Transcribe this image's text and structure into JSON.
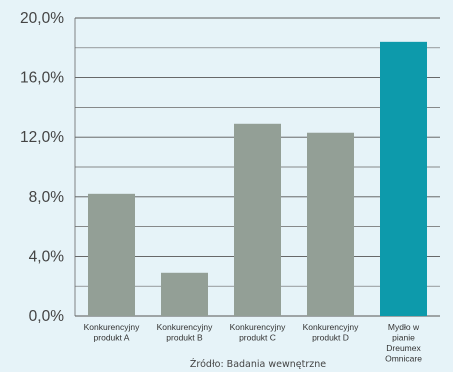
{
  "chart_data": {
    "type": "bar",
    "categories": [
      [
        "Konkurencyjny",
        "produkt A"
      ],
      [
        "Konkurencyjny",
        "produkt B"
      ],
      [
        "Konkurencyjny",
        "produkt C"
      ],
      [
        "Konkurencyjny",
        "produkt D"
      ],
      [
        "Mydło w",
        "pianie",
        "Dreumex",
        "Omnicare"
      ]
    ],
    "values": [
      8.2,
      2.9,
      12.9,
      12.3,
      18.4
    ],
    "bar_colors": [
      "#939f96",
      "#939f96",
      "#939f96",
      "#939f96",
      "#0d9aab"
    ],
    "title": "",
    "xlabel": "",
    "ylabel": "",
    "ylim": [
      0,
      20
    ],
    "y_ticks": [
      0,
      4,
      8,
      12,
      16,
      20
    ],
    "y_tick_labels": [
      "0,0%",
      "4,0%",
      "8,0%",
      "12,0%",
      "16,0%",
      "20,0%"
    ],
    "minor_gridlines": [
      2,
      6,
      10,
      14,
      18
    ],
    "grid": true,
    "source": "Źródło: Badania wewnętrzne"
  }
}
